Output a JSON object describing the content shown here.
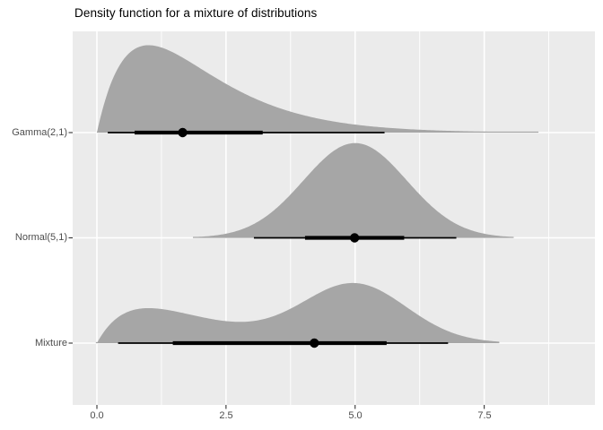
{
  "title": "Density function for a mixture of distributions",
  "colors": {
    "background": "#ffffff",
    "panel": "#ebebeb",
    "grid": "#ffffff",
    "slab": "#a6a6a6",
    "interval": "#000000",
    "axis_text": "#4d4d4d",
    "tick_mark": "#333333",
    "title_text": "#000000"
  },
  "chart_data": {
    "type": "area",
    "subtype": "density-ridges-halfeye",
    "title": "Density function for a mixture of distributions",
    "xlabel": "",
    "ylabel": "",
    "legend": "none",
    "grid": "on",
    "xlim": [
      -0.47,
      9.64
    ],
    "x_ticks": [
      "0.0",
      "2.5",
      "5.0",
      "7.5"
    ],
    "x_tick_values": [
      0,
      2.5,
      5.0,
      7.5
    ],
    "x_minor_values": [
      1.25,
      3.75,
      6.25,
      8.75
    ],
    "y_categories": [
      "Gamma(2,1)",
      "Normal(5,1)",
      "Mixture"
    ],
    "density_scale_max": 0.399,
    "interval_widths": [
      0.66,
      0.95
    ],
    "point_summary": "median",
    "rows": [
      {
        "label": "Gamma(2,1)",
        "distribution": "gamma",
        "shape": 2,
        "rate": 1,
        "range": [
          0.0,
          8.55
        ],
        "peak_x": 1.0,
        "peak_density": 0.368,
        "interval": {
          "point": 1.66,
          "thick": [
            0.73,
            3.21
          ],
          "thin": [
            0.21,
            5.57
          ]
        }
      },
      {
        "label": "Normal(5,1)",
        "distribution": "normal",
        "mean": 5,
        "sd": 1,
        "range": [
          1.86,
          8.07
        ],
        "peak_x": 5.0,
        "peak_density": 0.399,
        "interval": {
          "point": 4.99,
          "thick": [
            4.03,
            5.95
          ],
          "thin": [
            3.04,
            6.96
          ]
        }
      },
      {
        "label": "Mixture",
        "distribution": "mixture",
        "components": [
          {
            "type": "gamma",
            "shape": 2,
            "rate": 1,
            "weight": 0.4
          },
          {
            "type": "normal",
            "mean": 5,
            "sd": 1,
            "weight": 0.6
          }
        ],
        "range": [
          -0.02,
          7.79
        ],
        "peak_x": 4.93,
        "peak_density": 0.253,
        "interval": {
          "point": 4.21,
          "thick": [
            1.47,
            5.61
          ],
          "thin": [
            0.41,
            6.8
          ]
        }
      }
    ]
  }
}
